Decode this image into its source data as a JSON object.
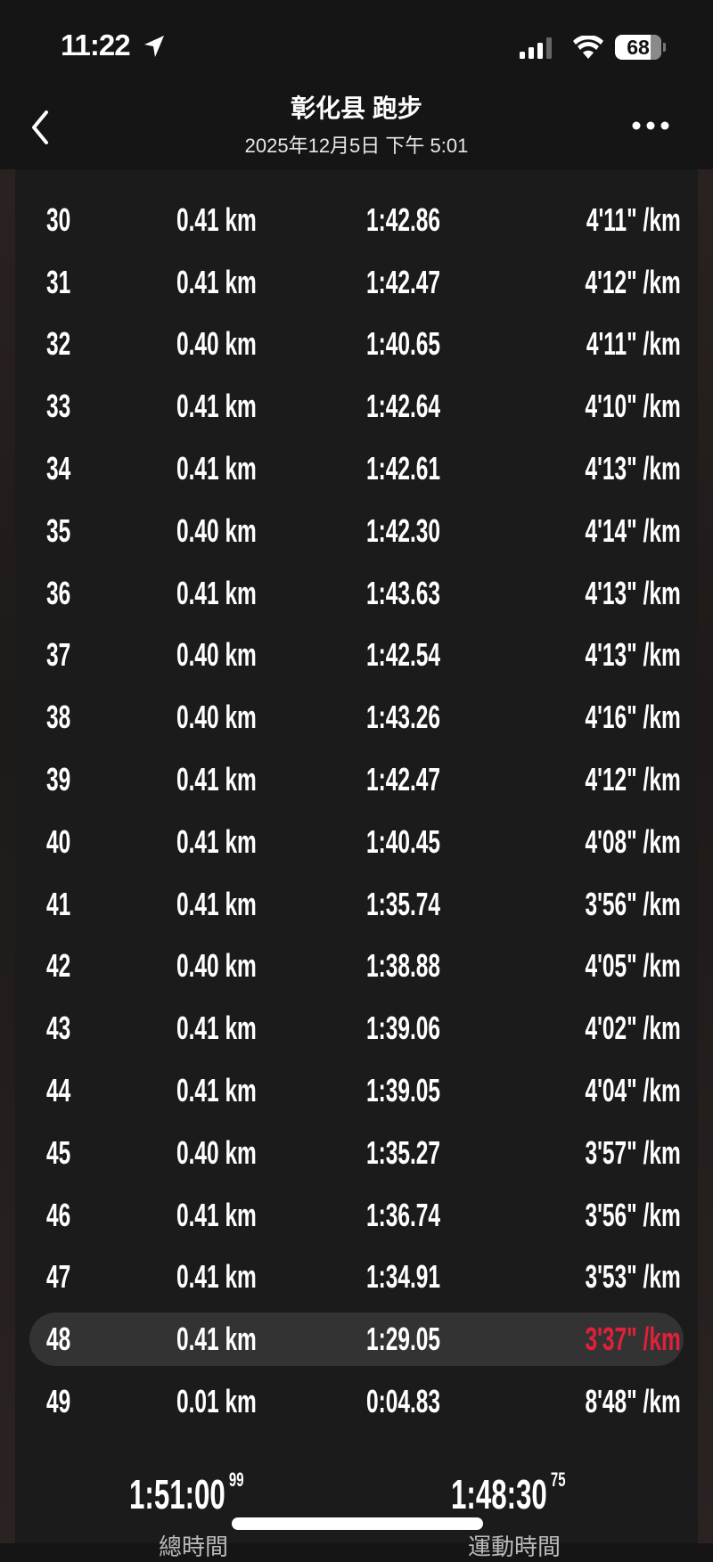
{
  "status_bar": {
    "time": "11:22",
    "battery": "68",
    "icons": [
      "location-arrow-icon",
      "signal-icon",
      "wifi-icon",
      "battery-icon"
    ]
  },
  "header": {
    "title": "彰化县 跑步",
    "subtitle": "2025年12月5日 下午 5:01",
    "back_icon": "chevron-left-icon",
    "more_icon": "ellipsis-icon"
  },
  "highlight_color": "#e1203a",
  "laps": [
    {
      "n": "30",
      "dist": "0.41 km",
      "time": "1:42.86",
      "pace": "4'11\" /km"
    },
    {
      "n": "31",
      "dist": "0.41 km",
      "time": "1:42.47",
      "pace": "4'12\" /km"
    },
    {
      "n": "32",
      "dist": "0.40 km",
      "time": "1:40.65",
      "pace": "4'11\" /km"
    },
    {
      "n": "33",
      "dist": "0.41 km",
      "time": "1:42.64",
      "pace": "4'10\" /km"
    },
    {
      "n": "34",
      "dist": "0.41 km",
      "time": "1:42.61",
      "pace": "4'13\" /km"
    },
    {
      "n": "35",
      "dist": "0.40 km",
      "time": "1:42.30",
      "pace": "4'14\" /km"
    },
    {
      "n": "36",
      "dist": "0.41 km",
      "time": "1:43.63",
      "pace": "4'13\" /km"
    },
    {
      "n": "37",
      "dist": "0.40 km",
      "time": "1:42.54",
      "pace": "4'13\" /km"
    },
    {
      "n": "38",
      "dist": "0.40 km",
      "time": "1:43.26",
      "pace": "4'16\" /km"
    },
    {
      "n": "39",
      "dist": "0.41 km",
      "time": "1:42.47",
      "pace": "4'12\" /km"
    },
    {
      "n": "40",
      "dist": "0.41 km",
      "time": "1:40.45",
      "pace": "4'08\" /km"
    },
    {
      "n": "41",
      "dist": "0.41 km",
      "time": "1:35.74",
      "pace": "3'56\" /km"
    },
    {
      "n": "42",
      "dist": "0.40 km",
      "time": "1:38.88",
      "pace": "4'05\" /km"
    },
    {
      "n": "43",
      "dist": "0.41 km",
      "time": "1:39.06",
      "pace": "4'02\" /km"
    },
    {
      "n": "44",
      "dist": "0.41 km",
      "time": "1:39.05",
      "pace": "4'04\" /km"
    },
    {
      "n": "45",
      "dist": "0.40 km",
      "time": "1:35.27",
      "pace": "3'57\" /km"
    },
    {
      "n": "46",
      "dist": "0.41 km",
      "time": "1:36.74",
      "pace": "3'56\" /km"
    },
    {
      "n": "47",
      "dist": "0.41 km",
      "time": "1:34.91",
      "pace": "3'53\" /km"
    },
    {
      "n": "48",
      "dist": "0.41 km",
      "time": "1:29.05",
      "pace": "3'37\" /km",
      "fastest": true
    },
    {
      "n": "49",
      "dist": "0.01 km",
      "time": "0:04.83",
      "pace": "8'48\" /km"
    }
  ],
  "totals": {
    "total_time": "1:51:00",
    "total_time_hundredths": "99",
    "total_label": "總時間",
    "moving_time": "1:48:30",
    "moving_time_hundredths": "75",
    "moving_label": "運動時間"
  }
}
